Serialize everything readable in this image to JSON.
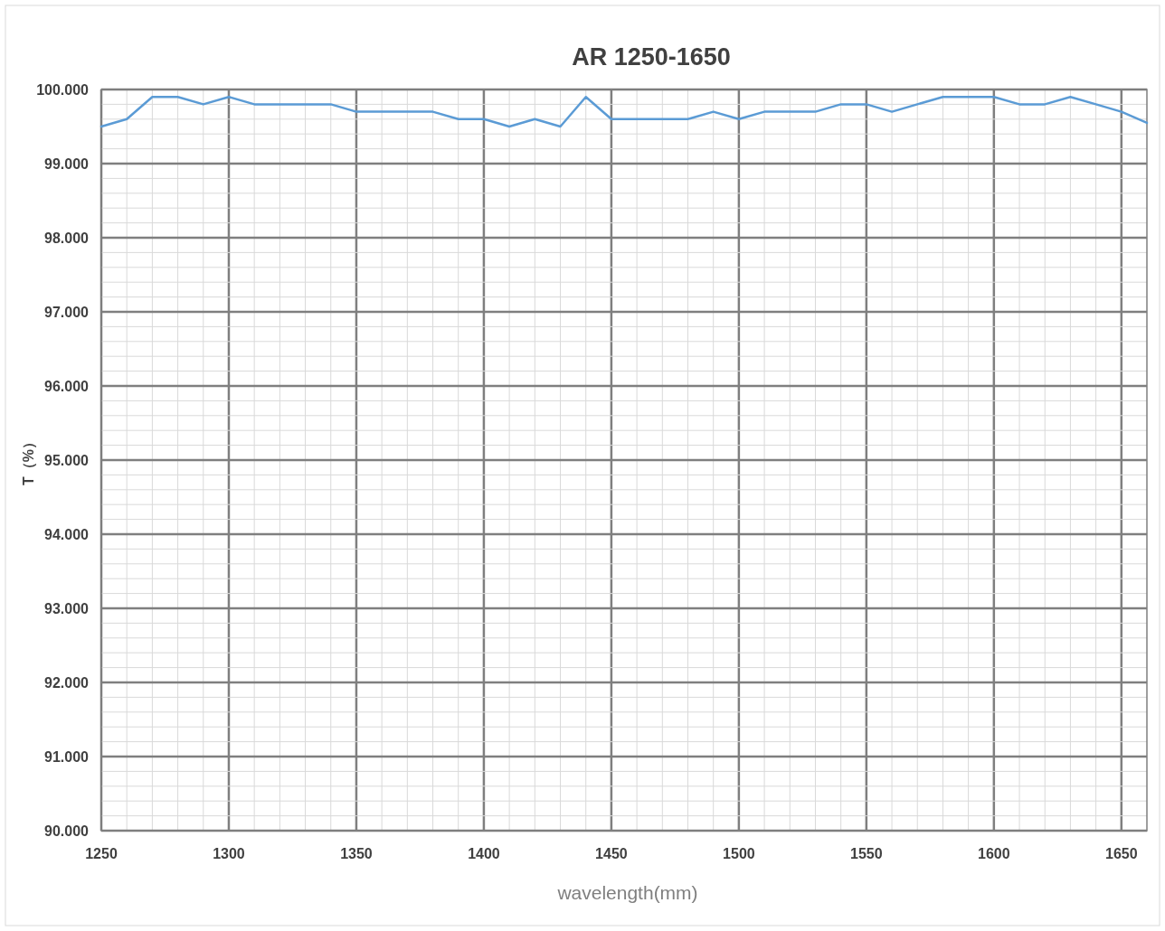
{
  "chart_data": {
    "type": "line",
    "title": "AR 1250-1650",
    "xlabel": "wavelength(mm)",
    "ylabel": "T（%）",
    "x": [
      1250,
      1260,
      1270,
      1280,
      1290,
      1300,
      1310,
      1320,
      1330,
      1340,
      1350,
      1360,
      1370,
      1380,
      1390,
      1400,
      1410,
      1420,
      1430,
      1440,
      1450,
      1460,
      1470,
      1480,
      1490,
      1500,
      1510,
      1520,
      1530,
      1540,
      1550,
      1560,
      1570,
      1580,
      1590,
      1600,
      1610,
      1620,
      1630,
      1640,
      1650,
      1660
    ],
    "series": [
      {
        "color": "#5b9bd5",
        "values": [
          99.5,
          99.6,
          99.9,
          99.9,
          99.8,
          99.9,
          99.8,
          99.8,
          99.8,
          99.8,
          99.7,
          99.7,
          99.7,
          99.7,
          99.6,
          99.6,
          99.5,
          99.6,
          99.5,
          99.9,
          99.6,
          99.6,
          99.6,
          99.6,
          99.7,
          99.6,
          99.7,
          99.7,
          99.7,
          99.8,
          99.8,
          99.7,
          99.8,
          99.9,
          99.9,
          99.9,
          99.8,
          99.8,
          99.9,
          99.8,
          99.7,
          99.55
        ]
      }
    ],
    "xlim": [
      1250,
      1660
    ],
    "xticks": [
      1250,
      1300,
      1350,
      1400,
      1450,
      1500,
      1550,
      1600,
      1650
    ],
    "ylim": [
      90,
      100
    ],
    "yticks": [
      {
        "value": 90,
        "label": "90.000"
      },
      {
        "value": 91,
        "label": "91.000"
      },
      {
        "value": 92,
        "label": "92.000"
      },
      {
        "value": 93,
        "label": "93.000"
      },
      {
        "value": 94,
        "label": "94.000"
      },
      {
        "value": 95,
        "label": "95.000"
      },
      {
        "value": 96,
        "label": "96.000"
      },
      {
        "value": 97,
        "label": "97.000"
      },
      {
        "value": 98,
        "label": "98.000"
      },
      {
        "value": 99,
        "label": "99.000"
      },
      {
        "value": 100,
        "label": "100.000"
      }
    ],
    "grid": true,
    "marker": "none",
    "line_style": "solid"
  }
}
